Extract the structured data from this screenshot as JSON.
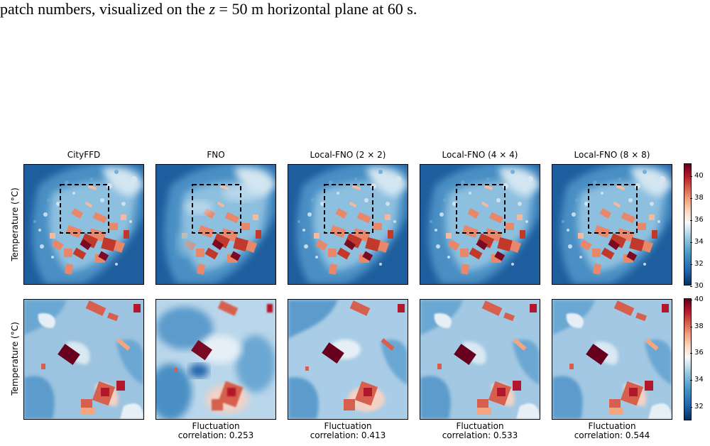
{
  "caption": {
    "line1_pre": "patch numbers, visualized on the ",
    "z_symbol": "z",
    "line1_post": " = 50 m horizontal plane at 60 s."
  },
  "panels": {
    "columns": [
      "CityFFD",
      "FNO",
      "Local-FNO (2 × 2)",
      "Local-FNO (4 × 4)",
      "Local-FNO (8 × 8)"
    ],
    "row_label": "Temperature (°C)",
    "top_row_colorbar_ticks": [
      "30",
      "32",
      "34",
      "36",
      "38",
      "40"
    ],
    "bottom_row_colorbar_ticks": [
      "32",
      "34",
      "36",
      "38",
      "40"
    ],
    "fluctuation_correlation": [
      {
        "line1": "Fluctuation",
        "line2": "correlation: 0.253"
      },
      {
        "line1": "Fluctuation",
        "line2": "correlation: 0.413"
      },
      {
        "line1": "Fluctuation",
        "line2": "correlation: 0.533"
      },
      {
        "line1": "Fluctuation",
        "line2": "correlation: 0.544"
      }
    ]
  },
  "colors": {
    "cold": "#1f5e9e",
    "mid": "#f7f7f7",
    "hot": "#b2182b",
    "hottest": "#67001f"
  },
  "colormap": "RdBu_r",
  "highlight_box_style": "dashed black"
}
